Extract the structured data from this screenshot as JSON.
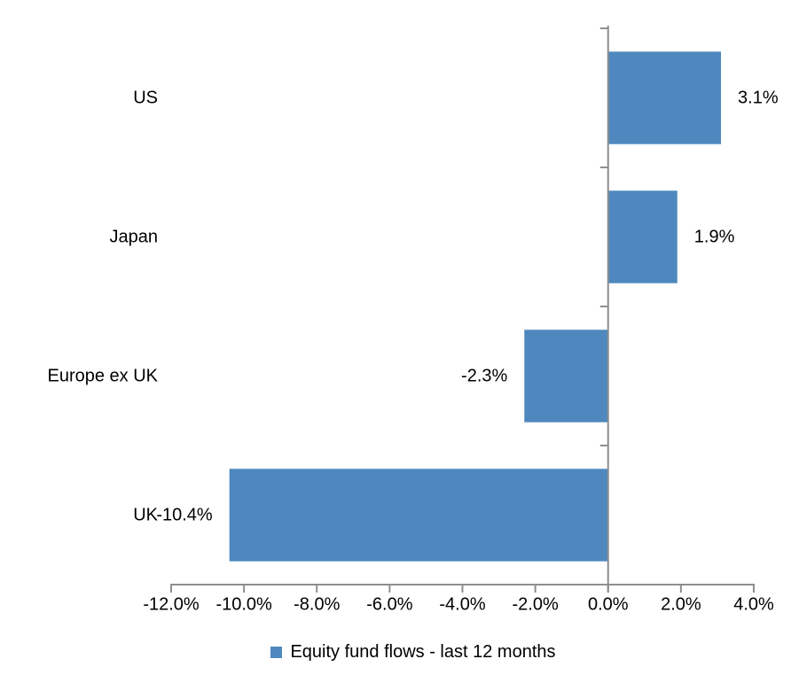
{
  "chart_data": {
    "type": "bar",
    "orientation": "horizontal",
    "title": "",
    "categories": [
      "US",
      "Japan",
      "Europe ex UK",
      "UK"
    ],
    "values": [
      3.1,
      1.9,
      -2.3,
      -10.4
    ],
    "value_labels": [
      "3.1%",
      "1.9%",
      "-2.3%",
      "-10.4%"
    ],
    "series_name": "Equity fund flows - last 12 months",
    "legend": "Equity fund flows - last 12 months",
    "legend_position": "bottom",
    "xlabel": "",
    "ylabel": "",
    "xlim": [
      -12,
      4
    ],
    "x_ticks": [
      -12,
      -10,
      -8,
      -6,
      -4,
      -2,
      0,
      2,
      4
    ],
    "x_tick_labels": [
      "-12.0%",
      "-10.0%",
      "-8.0%",
      "-6.0%",
      "-4.0%",
      "-2.0%",
      "0.0%",
      "2.0%",
      "4.0%"
    ],
    "grid": false,
    "bar_color": "#4e88be",
    "axis_color": "#8e8e8e",
    "text_color": "#000000",
    "background_color": "#ffffff"
  }
}
